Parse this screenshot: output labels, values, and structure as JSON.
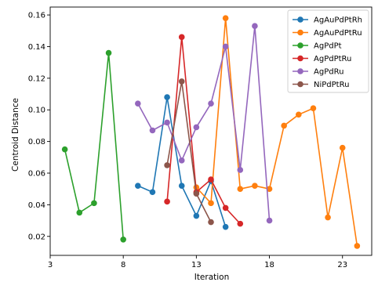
{
  "chart_data": {
    "type": "line",
    "xlabel": "Iteration",
    "ylabel": "Centroid Distance",
    "xlim": [
      3,
      25
    ],
    "ylim": [
      0.008,
      0.165
    ],
    "xticks": [
      3,
      8,
      13,
      18,
      23
    ],
    "yticks": [
      0.02,
      0.04,
      0.06,
      0.08,
      0.1,
      0.12,
      0.14,
      0.16
    ],
    "ytick_labels": [
      "0.02",
      "0.04",
      "0.06",
      "0.08",
      "0.10",
      "0.12",
      "0.14",
      "0.16"
    ],
    "legend_position": "top-right",
    "grid": false,
    "series": [
      {
        "name": "AgAuPdPtRh",
        "color": "#1f77b4",
        "x": [
          9,
          10,
          11,
          12,
          13,
          14,
          15
        ],
        "y": [
          0.052,
          0.048,
          0.108,
          0.052,
          0.033,
          0.055,
          0.026
        ]
      },
      {
        "name": "AgAuPdPtRu",
        "color": "#ff7f0e",
        "x": [
          13,
          14,
          15,
          16,
          17,
          18,
          19,
          20,
          21,
          22,
          23,
          24
        ],
        "y": [
          0.051,
          0.041,
          0.158,
          0.05,
          0.052,
          0.05,
          0.09,
          0.097,
          0.101,
          0.032,
          0.076,
          0.014
        ]
      },
      {
        "name": "AgPdPt",
        "color": "#2ca02c",
        "x": [
          4,
          5,
          6,
          7,
          8
        ],
        "y": [
          0.075,
          0.035,
          0.041,
          0.136,
          0.018
        ]
      },
      {
        "name": "AgPdPtRu",
        "color": "#d62728",
        "x": [
          11,
          12,
          13,
          14,
          15,
          16
        ],
        "y": [
          0.042,
          0.146,
          0.048,
          0.056,
          0.038,
          0.028
        ]
      },
      {
        "name": "AgPdRu",
        "color": "#9467bd",
        "x": [
          9,
          10,
          11,
          12,
          13,
          14,
          15,
          16,
          17,
          18
        ],
        "y": [
          0.104,
          0.087,
          0.092,
          0.068,
          0.089,
          0.104,
          0.14,
          0.062,
          0.153,
          0.03
        ]
      },
      {
        "name": "NiPdPtRu",
        "color": "#8c564b",
        "x": [
          11,
          12,
          13,
          14
        ],
        "y": [
          0.065,
          0.118,
          0.047,
          0.029
        ]
      }
    ]
  }
}
